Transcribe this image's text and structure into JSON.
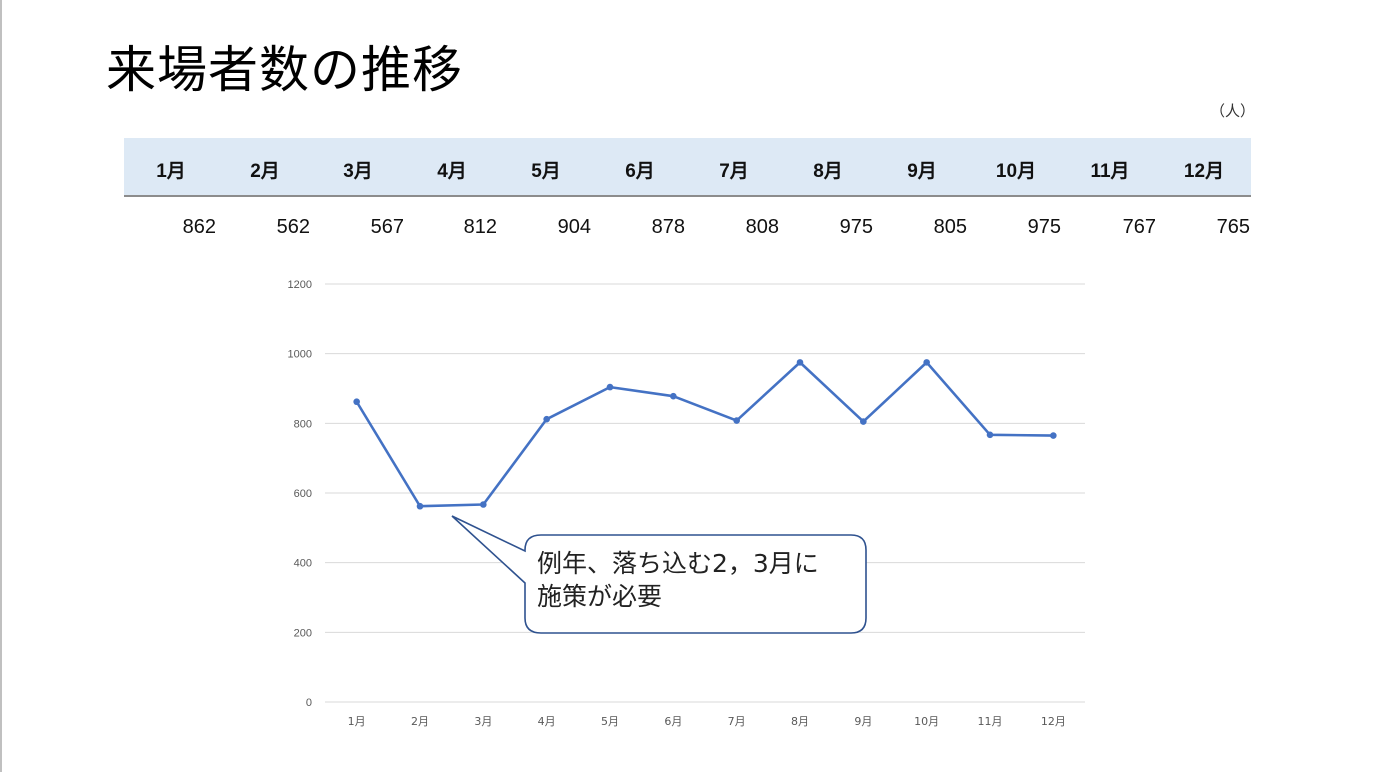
{
  "slide": {
    "title": "来場者数の推移",
    "unit_label": "（人）"
  },
  "table": {
    "headers": [
      "1月",
      "2月",
      "3月",
      "4月",
      "5月",
      "6月",
      "7月",
      "8月",
      "9月",
      "10月",
      "11月",
      "12月"
    ],
    "values": [
      "862",
      "562",
      "567",
      "812",
      "904",
      "878",
      "808",
      "975",
      "805",
      "975",
      "767",
      "765"
    ],
    "header_bg": "#dde9f5"
  },
  "callout": {
    "line1": "例年、落ち込む2，3月に",
    "line2": "施策が必要",
    "border_color": "#2f528f"
  },
  "chart_data": {
    "type": "line",
    "title": "",
    "xlabel": "",
    "ylabel": "",
    "categories": [
      "1月",
      "2月",
      "3月",
      "4月",
      "5月",
      "6月",
      "7月",
      "8月",
      "9月",
      "10月",
      "11月",
      "12月"
    ],
    "series": [
      {
        "name": "来場者数",
        "values": [
          862,
          562,
          567,
          812,
          904,
          878,
          808,
          975,
          805,
          975,
          767,
          765
        ],
        "color": "#4472c4"
      }
    ],
    "ylim": [
      0,
      1200
    ],
    "yticks": [
      "0",
      "200",
      "400",
      "600",
      "800",
      "1000",
      "1200"
    ],
    "grid": true,
    "legend": "none",
    "annotations": [
      "例年、落ち込む2，3月に施策が必要"
    ]
  }
}
